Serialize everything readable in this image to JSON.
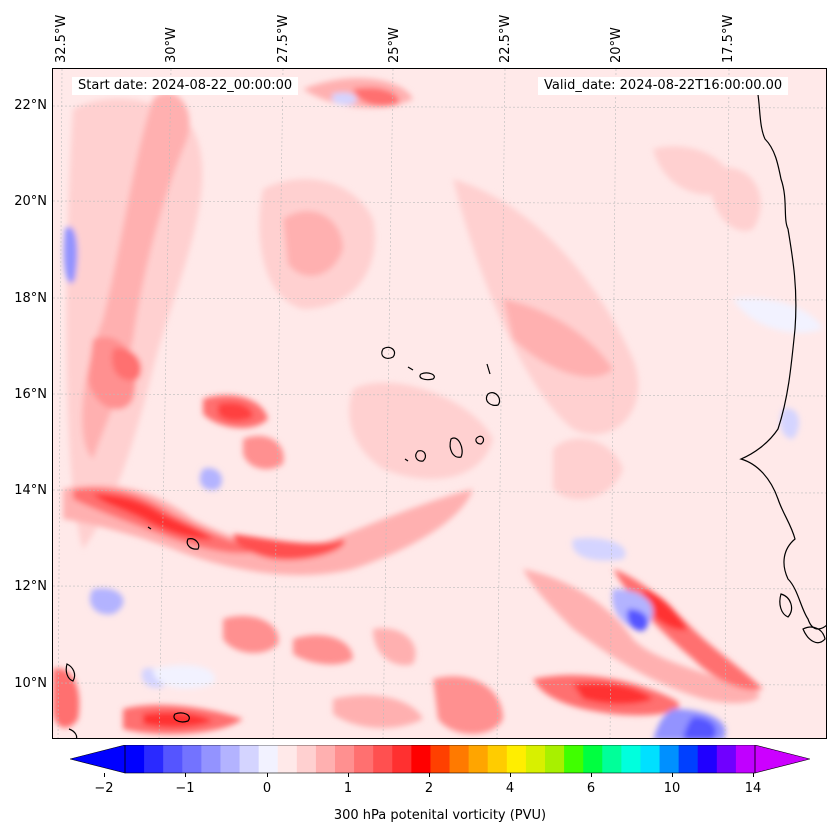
{
  "header": {
    "start_date": "Start date: 2024-08-22_00:00:00",
    "valid_date": "Valid_date: 2024-08-22T16:00:00.00"
  },
  "map": {
    "longitude_labels": [
      "32.5°W",
      "30°W",
      "27.5°W",
      "25°W",
      "22.5°W",
      "20°W",
      "17.5°W"
    ],
    "latitude_labels": [
      "22°N",
      "20°N",
      "18°N",
      "16°N",
      "14°N",
      "12°N",
      "10°N"
    ],
    "field": "300 hPa potential vorticity",
    "colors": {
      "ocean_background": "#ffe9e9",
      "coastline": "#000000",
      "gridline": "#bbbbbb"
    }
  },
  "colorbar": {
    "title": "300 hPa potenital vorticity (PVU)",
    "tick_labels": [
      "−2",
      "−1",
      "0",
      "1",
      "2",
      "4",
      "6",
      "10",
      "14"
    ],
    "colors": [
      "#0000ff",
      "#2a2aff",
      "#5555ff",
      "#7373ff",
      "#9393ff",
      "#b3b3ff",
      "#d4d4ff",
      "#f2f2ff",
      "#ffe9e9",
      "#ffd0d0",
      "#ffb0b0",
      "#ff9090",
      "#ff7070",
      "#ff5050",
      "#ff3030",
      "#ff0000",
      "#ff4000",
      "#ff7a00",
      "#ffa500",
      "#ffcc00",
      "#ffee00",
      "#d8f000",
      "#a8f000",
      "#40ff00",
      "#00ff40",
      "#00ff99",
      "#00ffdd",
      "#00e0ff",
      "#0090ff",
      "#0040ff",
      "#2000ff",
      "#7000ff",
      "#c000ff"
    ],
    "under_color": "#0000ff",
    "over_color": "#cc00ff"
  }
}
